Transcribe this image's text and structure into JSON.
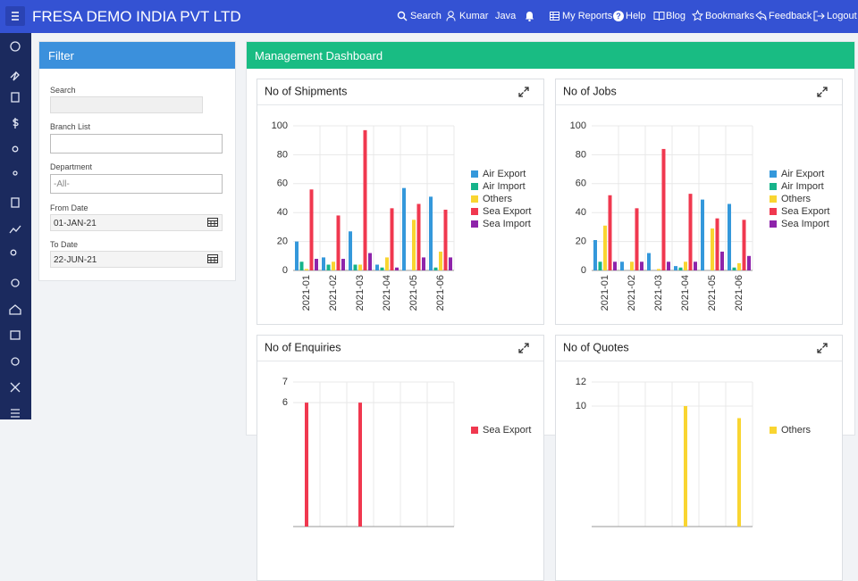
{
  "header": {
    "title": "FRESA DEMO INDIA PVT LTD",
    "nav": [
      "Search",
      "Kumar",
      "Java",
      "My Reports",
      "Help",
      "Blog",
      "Bookmarks",
      "Feedback",
      "Logout"
    ]
  },
  "filter": {
    "title": "Filter",
    "fields": [
      {
        "label": "Search"
      },
      {
        "label": "Branch List"
      },
      {
        "label": "Department",
        "placeholder": "-All-"
      },
      {
        "label": "From Date",
        "value": "01-JAN-21"
      },
      {
        "label": "To Date",
        "value": "22-JUN-21"
      }
    ]
  },
  "dashboard": {
    "title": "Management Dashboard"
  },
  "chart_data": [
    {
      "type": "bar",
      "title": "No of Shipments",
      "categories": [
        "2021-01",
        "2021-02",
        "2021-03",
        "2021-04",
        "2021-05",
        "2021-06"
      ],
      "ylim": [
        0,
        100
      ],
      "yticks": [
        0,
        20,
        40,
        60,
        80,
        100
      ],
      "grid": true,
      "legend": "right",
      "series": [
        {
          "name": "Air Export",
          "color": "#3498db",
          "values": [
            20,
            9,
            27,
            4,
            57,
            51
          ]
        },
        {
          "name": "Air Import",
          "color": "#16b38a",
          "values": [
            6,
            4,
            4,
            2,
            0,
            2
          ]
        },
        {
          "name": "Others",
          "color": "#f9d531",
          "values": [
            1,
            6,
            4,
            9,
            35,
            13
          ]
        },
        {
          "name": "Sea Export",
          "color": "#f0384f",
          "values": [
            56,
            38,
            97,
            43,
            46,
            42
          ]
        },
        {
          "name": "Sea Import",
          "color": "#8e24aa",
          "values": [
            8,
            8,
            12,
            2,
            9,
            9
          ]
        }
      ]
    },
    {
      "type": "bar",
      "title": "No of Jobs",
      "categories": [
        "2021-01",
        "2021-02",
        "2021-03",
        "2021-04",
        "2021-05",
        "2021-06"
      ],
      "ylim": [
        0,
        100
      ],
      "yticks": [
        0,
        20,
        40,
        60,
        80,
        100
      ],
      "grid": true,
      "legend": "right",
      "series": [
        {
          "name": "Air Export",
          "color": "#3498db",
          "values": [
            21,
            6,
            12,
            3,
            49,
            46
          ]
        },
        {
          "name": "Air Import",
          "color": "#16b38a",
          "values": [
            6,
            0,
            0,
            2,
            0,
            2
          ]
        },
        {
          "name": "Others",
          "color": "#f9d531",
          "values": [
            31,
            6,
            1,
            6,
            29,
            5
          ]
        },
        {
          "name": "Sea Export",
          "color": "#f0384f",
          "values": [
            52,
            43,
            84,
            53,
            36,
            35
          ]
        },
        {
          "name": "Sea Import",
          "color": "#8e24aa",
          "values": [
            6,
            6,
            6,
            6,
            13,
            10
          ]
        }
      ]
    },
    {
      "type": "bar",
      "title": "No of Enquiries",
      "categories": [
        null,
        null,
        null,
        null,
        null,
        null
      ],
      "ylim": [
        0,
        7
      ],
      "yticks": [
        6,
        7
      ],
      "grid": true,
      "legend": "right",
      "series": [
        {
          "name": "Sea Export",
          "color": "#f0384f",
          "values": [
            6,
            null,
            6,
            null,
            null,
            null
          ]
        }
      ]
    },
    {
      "type": "bar",
      "title": "No of Quotes",
      "categories": [
        null,
        null,
        null,
        null,
        null,
        null
      ],
      "ylim": [
        0,
        12
      ],
      "yticks": [
        10,
        12
      ],
      "grid": true,
      "legend": "right",
      "series": [
        {
          "name": "Others",
          "color": "#f9d531",
          "values": [
            null,
            null,
            null,
            10,
            null,
            9
          ]
        }
      ]
    }
  ]
}
